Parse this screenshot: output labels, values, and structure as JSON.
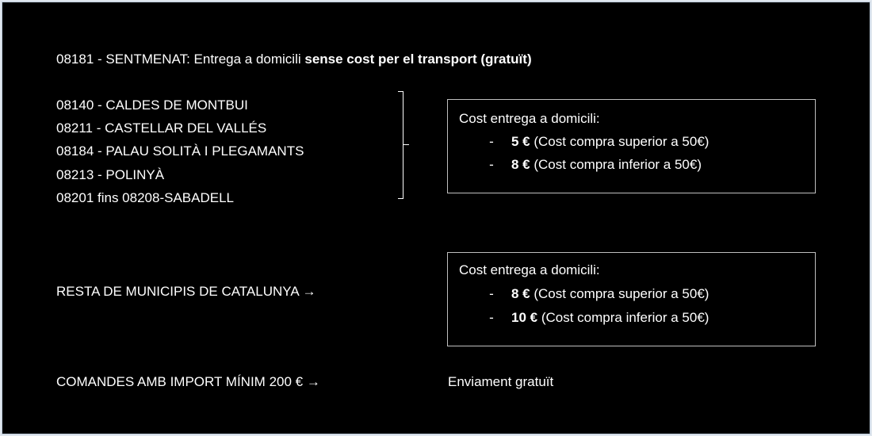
{
  "free_zone": {
    "prefix": "08181 - SENTMENAT: Entrega a domicili ",
    "bold": "sense cost per el transport (gratuït)"
  },
  "zone1": {
    "places": [
      "08140 - CALDES DE MONTBUI",
      "08211 - CASTELLAR DEL VALLÉS",
      "08184 - PALAU SOLITÀ I PLEGAMANTS",
      "08213 - POLINYÀ",
      "08201 fins 08208-SABADELL"
    ],
    "box": {
      "title": "Cost entrega a domicili:",
      "items": [
        {
          "dash": "-",
          "price": "5 €",
          "note": " (Cost compra superior a 50€)"
        },
        {
          "dash": "-",
          "price": "8 €",
          "note": " (Cost compra inferior a 50€)"
        }
      ]
    }
  },
  "zone2": {
    "label": "RESTA DE MUNICIPIS DE CATALUNYA →",
    "box": {
      "title": "Cost entrega a domicili:",
      "items": [
        {
          "dash": "-",
          "price": "8 €",
          "note": " (Cost compra superior a 50€)"
        },
        {
          "dash": "-",
          "price": "10 €",
          "note": " (Cost compra inferior a 50€)"
        }
      ]
    }
  },
  "minimum": {
    "label": "COMANDES AMB IMPORT MÍNIM 200 €  →",
    "value": "Enviament gratuït"
  }
}
